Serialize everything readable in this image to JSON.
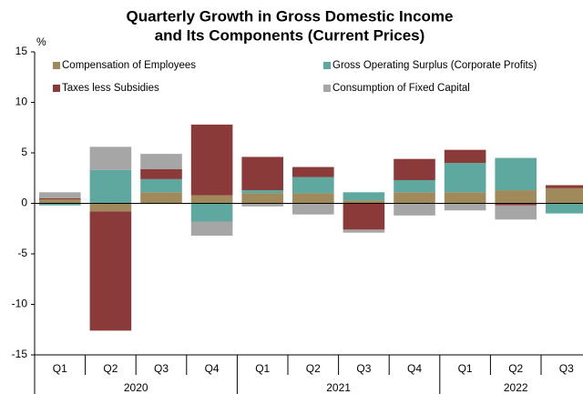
{
  "chart_data": {
    "type": "bar",
    "stacked": true,
    "title": [
      "Quarterly Growth in Gross Domestic Income",
      "and Its Components (Current Prices)"
    ],
    "y_label": "%",
    "categories": [
      "Q1",
      "Q2",
      "Q3",
      "Q4",
      "Q1",
      "Q2",
      "Q3",
      "Q4",
      "Q1",
      "Q2",
      "Q3"
    ],
    "category_groups": [
      "2020",
      "2020",
      "2020",
      "2020",
      "2021",
      "2021",
      "2021",
      "2021",
      "2022",
      "2022",
      "2022"
    ],
    "series": [
      {
        "name": "Compensation of Employees",
        "color": "#a08a5c",
        "values": [
          0.4,
          -0.8,
          1.1,
          0.8,
          1.0,
          1.0,
          0.3,
          1.1,
          1.1,
          1.3,
          1.5
        ]
      },
      {
        "name": "Gross Operating Surplus (Corporate Profits)",
        "color": "#5fa8a0",
        "values": [
          -0.2,
          3.3,
          1.3,
          -1.8,
          0.3,
          1.6,
          0.8,
          1.2,
          2.9,
          3.2,
          -1.0
        ]
      },
      {
        "name": "Taxes less Subsidies",
        "color": "#8b3a3a",
        "values": [
          0.1,
          -11.8,
          1.0,
          7.0,
          3.3,
          1.0,
          -2.6,
          2.1,
          1.3,
          -0.2,
          0.3
        ]
      },
      {
        "name": "Consumption of Fixed Capital",
        "color": "#a6a6a6",
        "values": [
          0.6,
          2.3,
          1.5,
          -1.4,
          -0.3,
          -1.1,
          -0.3,
          -1.2,
          -0.7,
          -1.4,
          0
        ]
      }
    ],
    "ylim": [
      -15,
      15
    ],
    "yticks": [
      -15,
      -10,
      -5,
      0,
      5,
      10,
      15
    ],
    "grid": false,
    "legend": "top"
  }
}
